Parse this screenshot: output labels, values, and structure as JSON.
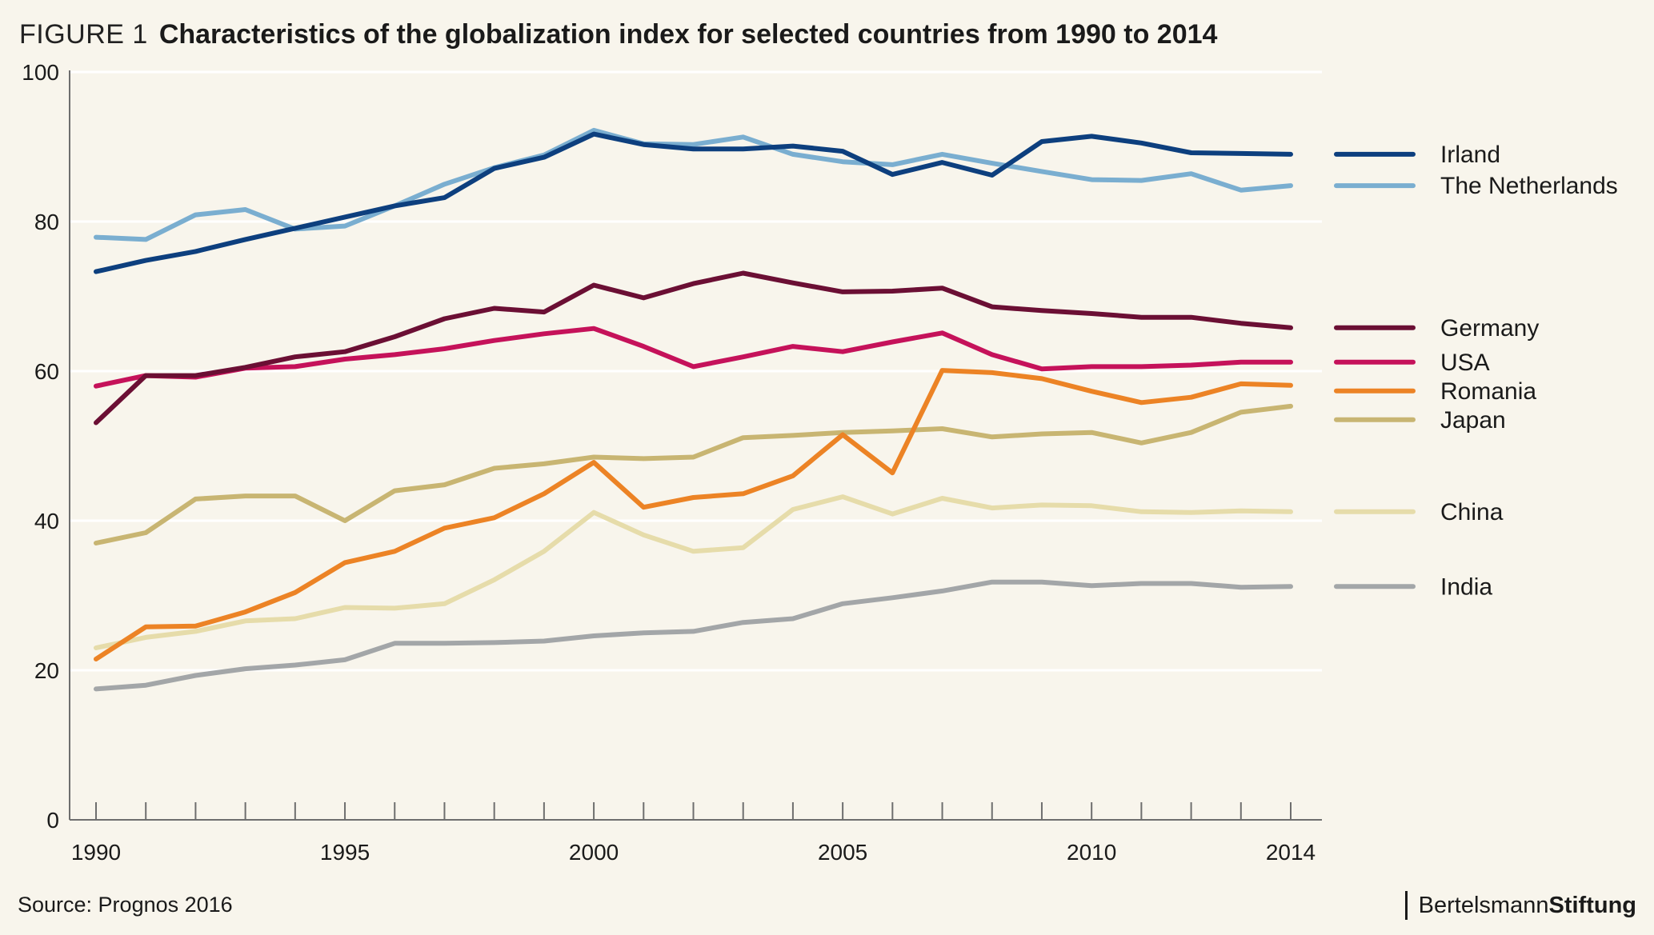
{
  "title": {
    "figure_label": "FIGURE 1",
    "text": "Characteristics of the globalization index for selected countries from 1990 to 2014"
  },
  "source": "Source: Prognos 2016",
  "brand": {
    "part1": "Bertelsmann",
    "part2": "Stiftung"
  },
  "chart_data": {
    "type": "line",
    "title": "Characteristics of the globalization index for selected countries from 1990 to 2014",
    "xlabel": "",
    "ylabel": "",
    "xlim": [
      1990,
      2014
    ],
    "ylim": [
      0,
      100
    ],
    "x": [
      1990,
      1991,
      1992,
      1993,
      1994,
      1995,
      1996,
      1997,
      1998,
      1999,
      2000,
      2001,
      2002,
      2003,
      2004,
      2005,
      2006,
      2007,
      2008,
      2009,
      2010,
      2011,
      2012,
      2013,
      2014
    ],
    "x_tick_labels": [
      "1990",
      "1995",
      "2000",
      "2005",
      "2010",
      "2014"
    ],
    "y_tick_labels": [
      "0",
      "20",
      "40",
      "60",
      "80",
      "100"
    ],
    "grid": "horizontal",
    "legend_position": "right",
    "series": [
      {
        "name": "Irland",
        "color": "#0d3f7e",
        "values": [
          73.3,
          74.8,
          76.0,
          77.6,
          79.1,
          80.6,
          82.1,
          83.2,
          87.1,
          88.6,
          91.7,
          90.3,
          89.7,
          89.7,
          90.1,
          89.4,
          86.3,
          87.9,
          86.2,
          90.7,
          91.4,
          90.5,
          89.2,
          89.1,
          89.0
        ]
      },
      {
        "name": "The Netherlands",
        "color": "#7aaed0",
        "values": [
          77.9,
          77.6,
          80.9,
          81.6,
          79.0,
          79.4,
          82.1,
          85.0,
          87.2,
          88.9,
          92.2,
          90.4,
          90.3,
          91.3,
          89.0,
          88.0,
          87.6,
          89.0,
          87.8,
          86.7,
          85.6,
          85.5,
          86.4,
          84.2,
          84.8
        ]
      },
      {
        "name": "Germany",
        "color": "#6b0f34",
        "values": [
          53.1,
          59.4,
          59.4,
          60.5,
          61.9,
          62.6,
          64.6,
          67.0,
          68.4,
          67.9,
          71.5,
          69.8,
          71.7,
          73.1,
          71.8,
          70.6,
          70.7,
          71.1,
          68.6,
          68.1,
          67.7,
          67.2,
          67.2,
          66.4,
          65.8
        ]
      },
      {
        "name": "USA",
        "color": "#c5125a",
        "values": [
          58.0,
          59.4,
          59.2,
          60.4,
          60.6,
          61.6,
          62.2,
          63.0,
          64.1,
          65.0,
          65.7,
          63.3,
          60.6,
          61.9,
          63.3,
          62.6,
          63.9,
          65.1,
          62.2,
          60.3,
          60.6,
          60.6,
          60.8,
          61.2,
          61.2
        ]
      },
      {
        "name": "Romania",
        "color": "#ec8325",
        "values": [
          21.5,
          25.8,
          25.9,
          27.8,
          30.4,
          34.4,
          35.9,
          39.0,
          40.4,
          43.6,
          47.8,
          41.8,
          43.1,
          43.6,
          46.0,
          51.5,
          46.4,
          60.1,
          59.8,
          59.0,
          57.3,
          55.8,
          56.5,
          58.3,
          58.1
        ]
      },
      {
        "name": "Japan",
        "color": "#c8b572",
        "values": [
          37.0,
          38.4,
          42.9,
          43.3,
          43.3,
          40.0,
          44.0,
          44.8,
          47.0,
          47.6,
          48.5,
          48.3,
          48.5,
          51.1,
          51.4,
          51.8,
          52.0,
          52.3,
          51.2,
          51.6,
          51.8,
          50.4,
          51.8,
          54.5,
          55.3
        ]
      },
      {
        "name": "China",
        "color": "#e6dcaa",
        "values": [
          23.0,
          24.4,
          25.2,
          26.6,
          26.9,
          28.4,
          28.3,
          28.9,
          32.1,
          35.9,
          41.1,
          38.1,
          35.9,
          36.4,
          41.5,
          43.2,
          40.9,
          43.0,
          41.7,
          42.1,
          42.0,
          41.2,
          41.1,
          41.3,
          41.2
        ]
      },
      {
        "name": "India",
        "color": "#a3a6a8",
        "values": [
          17.5,
          18.0,
          19.3,
          20.2,
          20.7,
          21.4,
          23.6,
          23.6,
          23.7,
          23.9,
          24.6,
          25.0,
          25.2,
          26.4,
          26.9,
          28.9,
          29.7,
          30.6,
          31.8,
          31.8,
          31.3,
          31.6,
          31.6,
          31.1,
          31.2
        ]
      }
    ]
  }
}
